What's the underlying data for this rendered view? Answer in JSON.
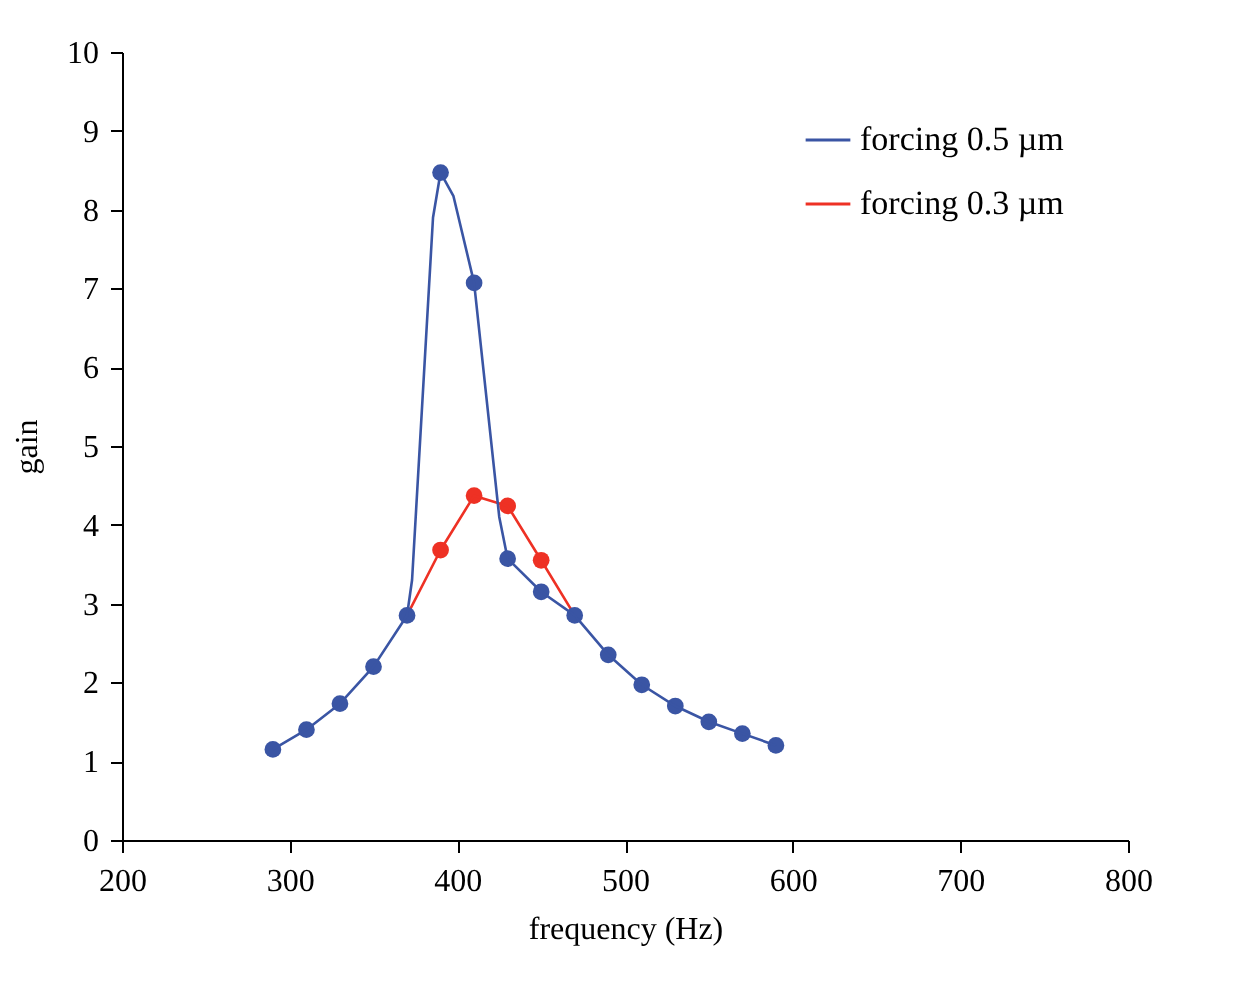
{
  "chart_data": {
    "type": "line",
    "xlabel": "frequency (Hz)",
    "ylabel": "gain",
    "xlim": [
      200,
      800
    ],
    "xticks": [
      200,
      300,
      400,
      500,
      600,
      700,
      800
    ],
    "ylim": [
      0,
      10
    ],
    "yticks": [
      0,
      1,
      2,
      3,
      4,
      5,
      6,
      7,
      8,
      9,
      10
    ],
    "grid": false,
    "legend": "top right",
    "line_style": "solid",
    "series": [
      {
        "name": "forcing 0.5 µm",
        "marker": "none",
        "color": "#3a55a4",
        "x": [
          290,
          310,
          330,
          350,
          370,
          373,
          385.5,
          390,
          397.7,
          410,
          425,
          430,
          450,
          470,
          490,
          510,
          530,
          550,
          570,
          590
        ],
        "values": [
          1.15,
          1.4,
          1.73,
          2.2,
          2.85,
          3.3,
          7.9,
          8.47,
          8.17,
          7.07,
          4.1,
          3.57,
          3.15,
          2.85,
          2.35,
          1.97,
          1.7,
          1.5,
          1.35,
          1.2
        ]
      },
      {
        "type": "scatter",
        "marker": "circle",
        "color": "#3a55a4",
        "x": [
          290,
          310,
          330,
          350,
          370,
          390,
          410,
          430,
          450,
          470,
          490,
          510,
          530,
          550,
          570,
          590
        ],
        "values": [
          1.15,
          1.4,
          1.73,
          2.2,
          2.85,
          8.47,
          7.07,
          3.57,
          3.15,
          2.85,
          2.35,
          1.97,
          1.7,
          1.5,
          1.35,
          1.2
        ]
      },
      {
        "name": "forcing 0.3 µm",
        "marker": "none",
        "color": "#ee3124",
        "x": [
          370,
          390,
          410,
          430,
          450,
          470
        ],
        "values": [
          2.85,
          3.68,
          4.37,
          4.24,
          3.55,
          2.85
        ]
      },
      {
        "type": "scatter",
        "marker": "circle",
        "color": "#ee3124",
        "x": [
          390,
          410,
          430,
          450
        ],
        "values": [
          3.68,
          4.37,
          4.24,
          3.55
        ]
      }
    ]
  }
}
